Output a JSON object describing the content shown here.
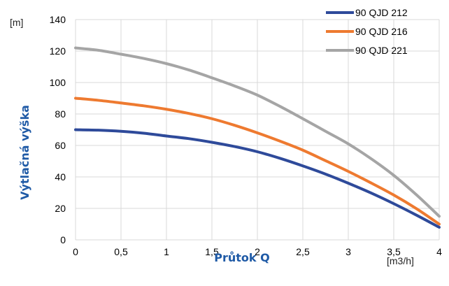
{
  "chart_data": {
    "type": "line",
    "title": "",
    "xlabel": "Průtok Q",
    "ylabel": "Výtlačná výška",
    "x_unit": "[m3/h]",
    "y_unit": "[m]",
    "xlim": [
      0,
      4
    ],
    "ylim": [
      0,
      140
    ],
    "x_ticks": [
      "0",
      "0,5",
      "1",
      "1,5",
      "2",
      "2,5",
      "3",
      "3,5",
      "4"
    ],
    "x_tick_values": [
      0,
      0.5,
      1,
      1.5,
      2,
      2.5,
      3,
      3.5,
      4
    ],
    "y_ticks": [
      "0",
      "20",
      "40",
      "60",
      "80",
      "100",
      "120",
      "140"
    ],
    "y_tick_values": [
      0,
      20,
      40,
      60,
      80,
      100,
      120,
      140
    ],
    "grid": true,
    "legend_position": "top-right",
    "axis_title_color": "#1f5aa6",
    "x": [
      0,
      0.25,
      0.5,
      0.75,
      1,
      1.25,
      1.5,
      1.75,
      2,
      2.25,
      2.5,
      2.75,
      3,
      3.25,
      3.5,
      3.75,
      4
    ],
    "series": [
      {
        "name": "90 QJD 212",
        "color": "#2e4a9a",
        "values": [
          70,
          69.7,
          69,
          67.8,
          66,
          64.3,
          62,
          59.3,
          56,
          51.8,
          47,
          41.8,
          36,
          29.8,
          23,
          15.7,
          8
        ]
      },
      {
        "name": "90 QJD 216",
        "color": "#ee7a30",
        "values": [
          90,
          88.7,
          87,
          85.2,
          83,
          80.3,
          77,
          72.8,
          68,
          62.7,
          57,
          50.3,
          43.5,
          36.2,
          28.5,
          19.8,
          10
        ]
      },
      {
        "name": "90 QJD 221",
        "color": "#a5a5a5",
        "values": [
          122,
          120.5,
          118,
          115.3,
          112,
          107.9,
          103,
          97.8,
          92,
          84.8,
          77,
          69,
          61,
          51.6,
          41,
          28.6,
          15
        ]
      }
    ]
  }
}
